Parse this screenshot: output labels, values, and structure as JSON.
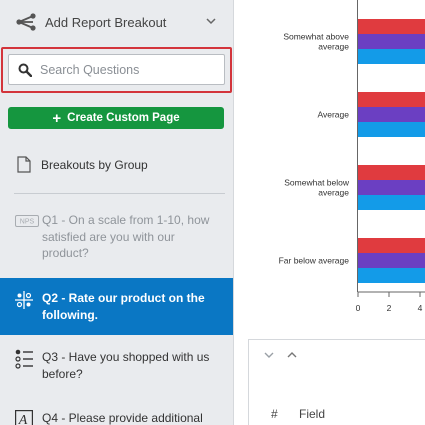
{
  "sidebar": {
    "breakout_label": "Add Report Breakout",
    "search": {
      "placeholder": "Search Questions",
      "value": ""
    },
    "create_button_label": "Create Custom Page",
    "group_label": "Breakouts by Group",
    "questions": [
      {
        "id": "q1",
        "label": "Q1 - On a scale from 1-10, how satisfied are you with our product?",
        "icon": "nps-icon",
        "selected": false,
        "disabled": true
      },
      {
        "id": "q2",
        "label": "Q2 - Rate our product on the following.",
        "icon": "matrix-icon",
        "selected": true
      },
      {
        "id": "q3",
        "label": "Q3 - Have you shopped with us before?",
        "icon": "multiple-choice-icon",
        "selected": false
      },
      {
        "id": "q4",
        "label": "Q4 - Please provide additional",
        "icon": "text-entry-icon",
        "selected": false
      }
    ],
    "nps_badge": "NPS",
    "text_entry_glyph": "A"
  },
  "chart_data": {
    "type": "bar",
    "orientation": "horizontal",
    "categories": [
      "Somewhat above average",
      "Average",
      "Somewhat below average",
      "Far below average"
    ],
    "category_lines": [
      [
        "Somewhat above",
        "average"
      ],
      [
        "Average"
      ],
      [
        "Somewhat below",
        "average"
      ],
      [
        "Far below average"
      ]
    ],
    "x_ticks": [
      0,
      2,
      4
    ],
    "series_colors": [
      "#e03b3f",
      "#6b3fc2",
      "#139be8"
    ]
  },
  "panel": {
    "hash_label": "#",
    "field_label": "Field"
  }
}
